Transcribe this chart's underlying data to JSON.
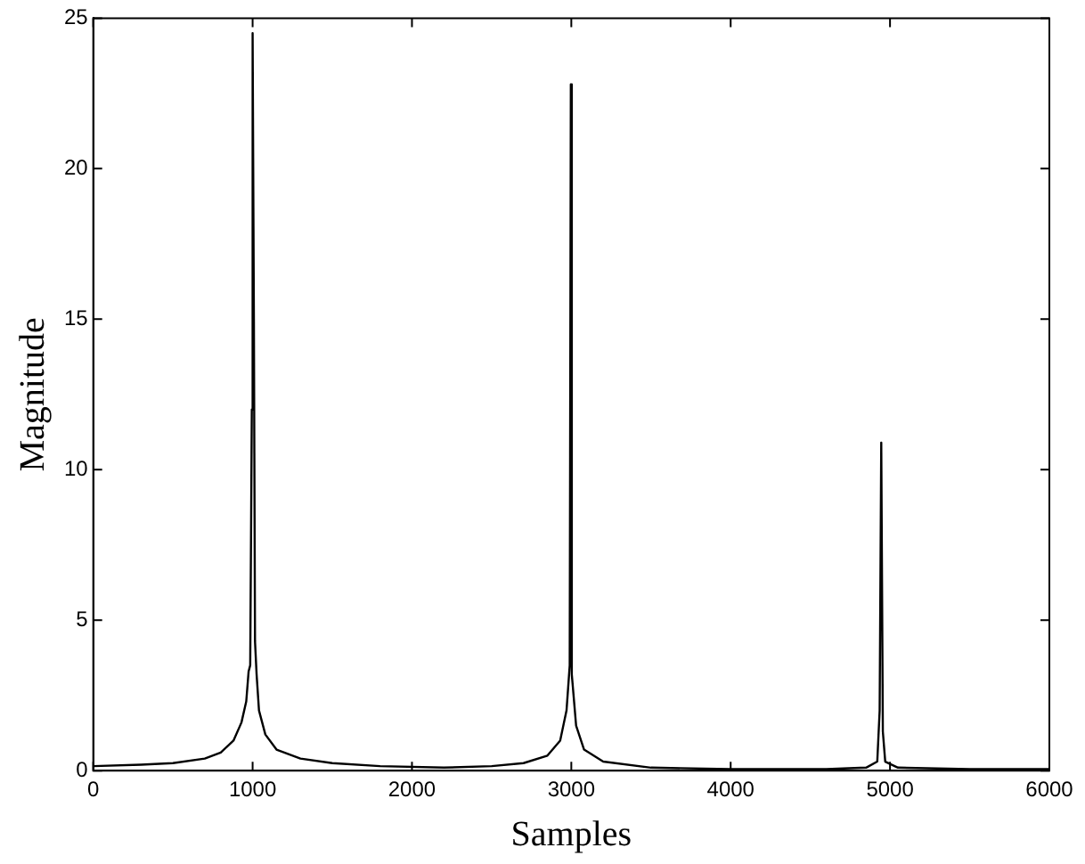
{
  "chart_data": {
    "type": "line",
    "xlabel": "Samples",
    "ylabel": "Magnitude",
    "x": [
      0,
      300,
      500,
      700,
      800,
      880,
      930,
      960,
      975,
      985,
      995,
      1000,
      1008,
      1015,
      1025,
      1040,
      1080,
      1150,
      1300,
      1500,
      1800,
      2200,
      2500,
      2700,
      2850,
      2930,
      2970,
      2990,
      2997,
      3003,
      3030,
      3080,
      3200,
      3500,
      4000,
      4600,
      4850,
      4920,
      4935,
      4945,
      4955,
      4970,
      5050,
      5500,
      6000
    ],
    "series": [
      {
        "color": "#000000",
        "values": [
          0.15,
          0.2,
          0.25,
          0.4,
          0.6,
          1.0,
          1.6,
          2.3,
          3.3,
          3.5,
          12,
          24.5,
          15,
          4.3,
          3.2,
          2.0,
          1.2,
          0.7,
          0.4,
          0.25,
          0.15,
          0.1,
          0.15,
          0.25,
          0.5,
          1.0,
          2.0,
          3.5,
          22.8,
          3.2,
          1.5,
          0.7,
          0.3,
          0.1,
          0.05,
          0.05,
          0.1,
          0.3,
          2.0,
          10.9,
          1.3,
          0.3,
          0.1,
          0.05,
          0.05
        ]
      }
    ],
    "xlim": [
      0,
      6000
    ],
    "xticks": [
      0,
      1000,
      2000,
      3000,
      4000,
      5000,
      6000
    ],
    "ylim": [
      0,
      25
    ],
    "yticks": [
      0,
      5,
      10,
      15,
      20,
      25
    ],
    "grid": false,
    "legend": false,
    "marker": "none",
    "line_style": "solid"
  }
}
